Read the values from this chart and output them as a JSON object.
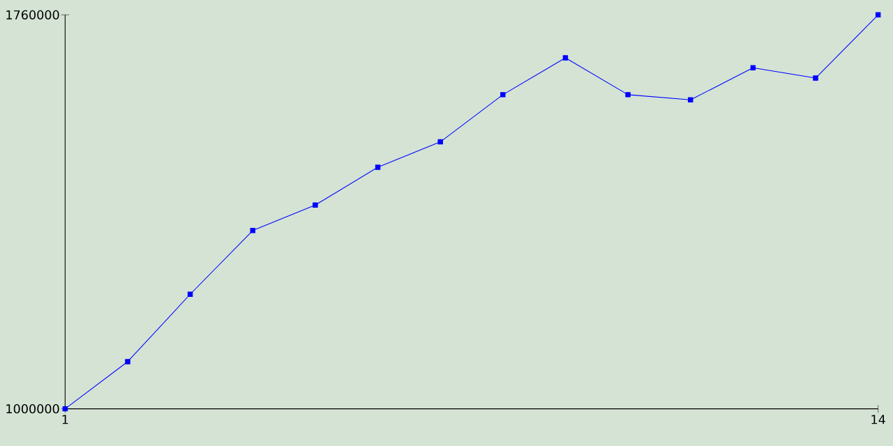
{
  "chart_data": {
    "type": "line",
    "x": [
      1,
      2,
      3,
      4,
      5,
      6,
      7,
      8,
      9,
      10,
      11,
      12,
      13,
      14
    ],
    "series": [
      {
        "color": "#0000ff",
        "values": [
          1000000,
          1091000,
          1221000,
          1344000,
          1393000,
          1466000,
          1515000,
          1606000,
          1677000,
          1606000,
          1596000,
          1658000,
          1638000,
          1760000
        ]
      }
    ],
    "xlim": [
      1,
      14
    ],
    "xticks": [
      1,
      14
    ],
    "ylim": [
      1000000,
      1760000
    ],
    "yticks": [
      1000000,
      1760000
    ],
    "grid": false,
    "marker": "square",
    "line_style": "solid"
  }
}
